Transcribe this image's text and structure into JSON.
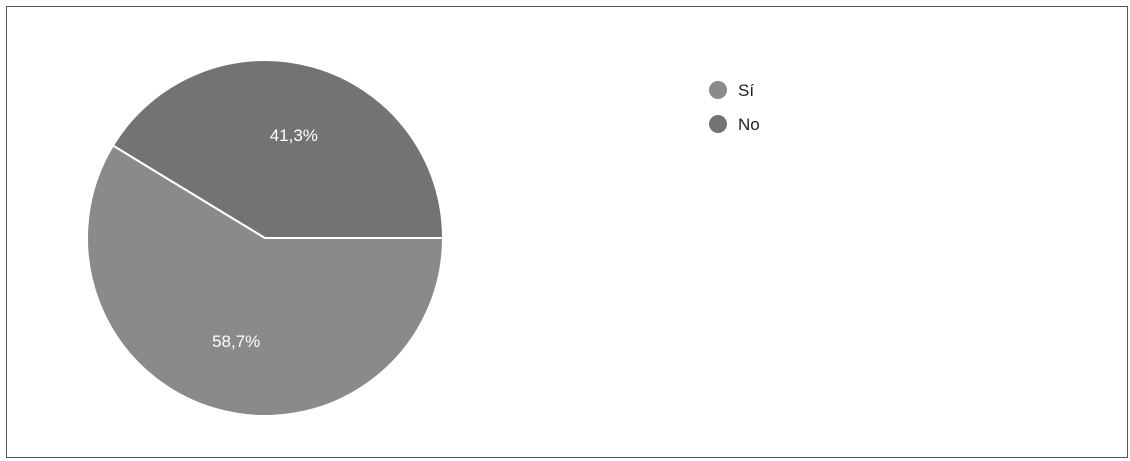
{
  "chart_data": {
    "type": "pie",
    "slices": [
      {
        "name": "Sí",
        "value": 58.7,
        "label": "58,7%",
        "color": "#8a8a8a"
      },
      {
        "name": "No",
        "value": 41.3,
        "label": "41,3%",
        "color": "#737373"
      }
    ],
    "legend": {
      "position": "top-right",
      "items": [
        "Sí",
        "No"
      ]
    },
    "start_angle_deg": 0,
    "direction": "clockwise"
  }
}
